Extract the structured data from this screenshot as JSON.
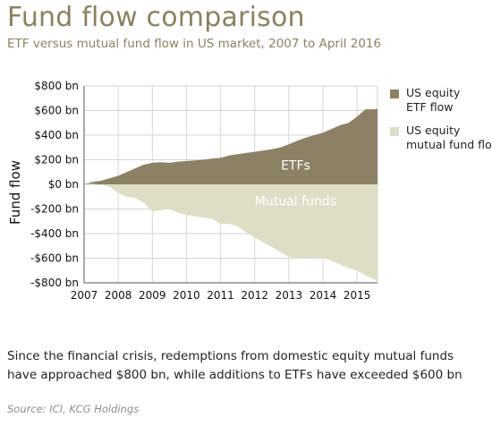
{
  "header": {
    "title": "Fund flow comparison",
    "subtitle": "ETF versus mutual fund flow in US market, 2007 to April 2016"
  },
  "legend": [
    {
      "label_lines": [
        "US equity",
        "ETF flow"
      ],
      "color": "#8c8165"
    },
    {
      "label_lines": [
        "US equity",
        "mutual fund flow"
      ],
      "color": "#dedec6"
    }
  ],
  "caption": "Since the financial crisis, redemptions from domestic equity mutual funds have approached $800 bn, while additions to ETFs have exceeded $600 bn",
  "source": "Source: ICI, KCG Holdings",
  "colors": {
    "accent": "#8b8161",
    "etf": "#8c8165",
    "mutual": "#dedec6"
  },
  "chart_data": {
    "type": "area",
    "ylabel": "Fund flow",
    "ylim": [
      -800,
      800
    ],
    "yticks": [
      800,
      600,
      400,
      200,
      0,
      -200,
      -400,
      -600,
      -800
    ],
    "ytick_labels": [
      "$800 bn",
      "$600 bn",
      "$400 bn",
      "$200 bn",
      "$0 bn",
      "-$200 bn",
      "-$400 bn",
      "-$600 bn",
      "-$800 bn"
    ],
    "xlim": [
      2007.0,
      2015.6
    ],
    "xticks": [
      2007,
      2008,
      2009,
      2010,
      2011,
      2012,
      2013,
      2014,
      2015
    ],
    "xtick_labels": [
      "2007",
      "2008",
      "2009",
      "2010",
      "2011",
      "2012",
      "2013",
      "2014",
      "2015"
    ],
    "grid": true,
    "annotations": [
      {
        "text": "ETFs",
        "x": 2013.2,
        "y": 120
      },
      {
        "text": "Mutual funds",
        "x": 2013.2,
        "y": -170
      }
    ],
    "series": [
      {
        "name": "US equity ETF flow",
        "x": [
          2007.0,
          2007.25,
          2007.5,
          2007.75,
          2008.0,
          2008.25,
          2008.5,
          2008.75,
          2009.0,
          2009.25,
          2009.5,
          2009.75,
          2010.0,
          2010.25,
          2010.5,
          2010.75,
          2011.0,
          2011.25,
          2011.5,
          2011.75,
          2012.0,
          2012.25,
          2012.5,
          2012.75,
          2013.0,
          2013.25,
          2013.5,
          2013.75,
          2014.0,
          2014.25,
          2014.5,
          2014.75,
          2015.0,
          2015.25,
          2015.5,
          2015.6
        ],
        "values": [
          0,
          20,
          30,
          50,
          70,
          100,
          130,
          160,
          175,
          180,
          175,
          185,
          190,
          195,
          200,
          210,
          215,
          235,
          245,
          255,
          265,
          275,
          285,
          300,
          325,
          355,
          380,
          400,
          420,
          450,
          480,
          500,
          550,
          610,
          610,
          615
        ]
      },
      {
        "name": "US equity mutual fund flow",
        "x": [
          2007.0,
          2007.25,
          2007.5,
          2007.75,
          2008.0,
          2008.25,
          2008.5,
          2008.75,
          2009.0,
          2009.25,
          2009.5,
          2009.75,
          2010.0,
          2010.25,
          2010.5,
          2010.75,
          2011.0,
          2011.25,
          2011.5,
          2011.75,
          2012.0,
          2012.25,
          2012.5,
          2012.75,
          2013.0,
          2013.25,
          2013.5,
          2013.75,
          2014.0,
          2014.25,
          2014.5,
          2014.75,
          2015.0,
          2015.25,
          2015.5,
          2015.6
        ],
        "values": [
          0,
          5,
          -5,
          -20,
          -70,
          -100,
          -110,
          -150,
          -220,
          -210,
          -200,
          -230,
          -250,
          -260,
          -270,
          -280,
          -320,
          -320,
          -340,
          -390,
          -430,
          -470,
          -510,
          -550,
          -590,
          -600,
          -600,
          -595,
          -600,
          -620,
          -650,
          -680,
          -700,
          -740,
          -770,
          -790
        ]
      }
    ]
  }
}
